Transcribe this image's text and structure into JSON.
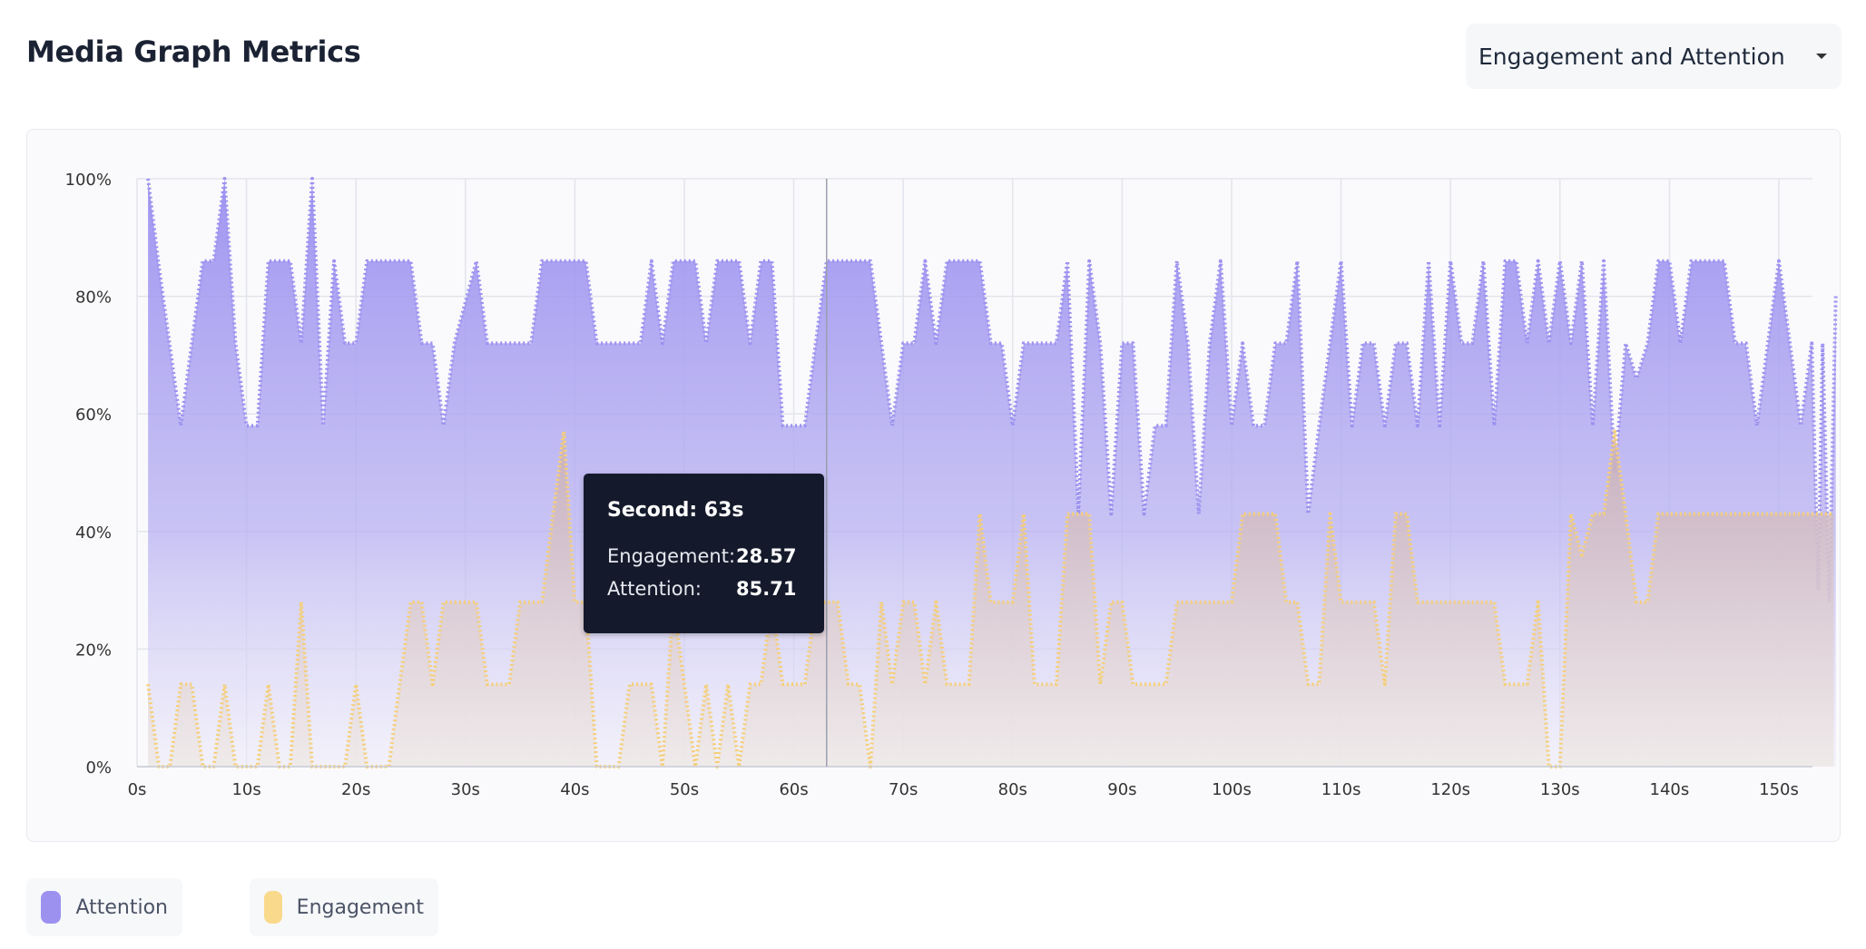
{
  "header": {
    "title": "Media Graph Metrics",
    "metric_select": {
      "value": "Engagement and Attention"
    }
  },
  "tooltip": {
    "title": "Second: 63s",
    "rows": [
      {
        "label": "Engagement:",
        "value": "28.57"
      },
      {
        "label": "Attention:",
        "value": "85.71"
      }
    ]
  },
  "legend": [
    {
      "label": "Attention",
      "color": "#9d91f0"
    },
    {
      "label": "Engagement",
      "color": "#f9d98b"
    }
  ],
  "chart_data": {
    "type": "area",
    "x_unit": "s",
    "xlim": [
      0,
      153
    ],
    "ylim": [
      0,
      100
    ],
    "x_ticks": [
      "0s",
      "10s",
      "20s",
      "30s",
      "40s",
      "50s",
      "60s",
      "70s",
      "80s",
      "90s",
      "100s",
      "110s",
      "120s",
      "130s",
      "140s",
      "150s"
    ],
    "y_ticks": [
      "0%",
      "20%",
      "40%",
      "60%",
      "80%",
      "100%"
    ],
    "grid": true,
    "legend_position": "bottom-left",
    "hover_x": 63,
    "series": [
      {
        "name": "Attention",
        "color": "#9d91f0",
        "points": [
          [
            1,
            100
          ],
          [
            2,
            85
          ],
          [
            4,
            58
          ],
          [
            6,
            86
          ],
          [
            7,
            86
          ],
          [
            8,
            100
          ],
          [
            9,
            72
          ],
          [
            10,
            58
          ],
          [
            11,
            58
          ],
          [
            12,
            86
          ],
          [
            14,
            86
          ],
          [
            15,
            72
          ],
          [
            16,
            100
          ],
          [
            17,
            58
          ],
          [
            18,
            86
          ],
          [
            19,
            72
          ],
          [
            20,
            72
          ],
          [
            21,
            86
          ],
          [
            25,
            86
          ],
          [
            26,
            72
          ],
          [
            27,
            72
          ],
          [
            28,
            58
          ],
          [
            29,
            72
          ],
          [
            31,
            86
          ],
          [
            32,
            72
          ],
          [
            36,
            72
          ],
          [
            37,
            86
          ],
          [
            41,
            86
          ],
          [
            42,
            72
          ],
          [
            46,
            72
          ],
          [
            47,
            86
          ],
          [
            48,
            72
          ],
          [
            49,
            86
          ],
          [
            51,
            86
          ],
          [
            52,
            72
          ],
          [
            53,
            86
          ],
          [
            55,
            86
          ],
          [
            56,
            72
          ],
          [
            57,
            86
          ],
          [
            58,
            86
          ],
          [
            59,
            58
          ],
          [
            61,
            58
          ],
          [
            62,
            72
          ],
          [
            63,
            86
          ],
          [
            67,
            86
          ],
          [
            68,
            72
          ],
          [
            69,
            58
          ],
          [
            70,
            72
          ],
          [
            71,
            72
          ],
          [
            72,
            86
          ],
          [
            73,
            72
          ],
          [
            74,
            86
          ],
          [
            77,
            86
          ],
          [
            78,
            72
          ],
          [
            79,
            72
          ],
          [
            80,
            58
          ],
          [
            81,
            72
          ],
          [
            84,
            72
          ],
          [
            85,
            86
          ],
          [
            86,
            43
          ],
          [
            87,
            86
          ],
          [
            88,
            72
          ],
          [
            89,
            43
          ],
          [
            90,
            72
          ],
          [
            91,
            72
          ],
          [
            92,
            43
          ],
          [
            93,
            58
          ],
          [
            94,
            58
          ],
          [
            95,
            86
          ],
          [
            96,
            72
          ],
          [
            97,
            43
          ],
          [
            98,
            72
          ],
          [
            99,
            86
          ],
          [
            100,
            58
          ],
          [
            101,
            72
          ],
          [
            102,
            58
          ],
          [
            103,
            58
          ],
          [
            104,
            72
          ],
          [
            105,
            72
          ],
          [
            106,
            86
          ],
          [
            107,
            43
          ],
          [
            108,
            58
          ],
          [
            109,
            72
          ],
          [
            110,
            86
          ],
          [
            111,
            58
          ],
          [
            112,
            72
          ],
          [
            113,
            72
          ],
          [
            114,
            58
          ],
          [
            115,
            72
          ],
          [
            116,
            72
          ],
          [
            117,
            58
          ],
          [
            118,
            86
          ],
          [
            119,
            58
          ],
          [
            120,
            86
          ],
          [
            121,
            72
          ],
          [
            122,
            72
          ],
          [
            123,
            86
          ],
          [
            124,
            58
          ],
          [
            125,
            86
          ],
          [
            126,
            86
          ],
          [
            127,
            72
          ],
          [
            128,
            86
          ],
          [
            129,
            72
          ],
          [
            130,
            86
          ],
          [
            131,
            72
          ],
          [
            132,
            86
          ],
          [
            133,
            58
          ],
          [
            134,
            86
          ],
          [
            135,
            50
          ],
          [
            136,
            72
          ],
          [
            137,
            66
          ],
          [
            138,
            72
          ],
          [
            139,
            86
          ],
          [
            140,
            86
          ],
          [
            141,
            72
          ],
          [
            142,
            86
          ],
          [
            145,
            86
          ],
          [
            146,
            72
          ],
          [
            147,
            72
          ],
          [
            148,
            58
          ],
          [
            149,
            72
          ],
          [
            150,
            86
          ],
          [
            151,
            72
          ],
          [
            152,
            58
          ],
          [
            153,
            72
          ],
          [
            153.6,
            30
          ],
          [
            154,
            72
          ],
          [
            154.6,
            28
          ],
          [
            155.2,
            80
          ]
        ]
      },
      {
        "name": "Engagement",
        "color": "#f5cf78",
        "points": [
          [
            1,
            14
          ],
          [
            2,
            0
          ],
          [
            3,
            0
          ],
          [
            4,
            14
          ],
          [
            5,
            14
          ],
          [
            6,
            0
          ],
          [
            7,
            0
          ],
          [
            8,
            14
          ],
          [
            9,
            0
          ],
          [
            10,
            0
          ],
          [
            11,
            0
          ],
          [
            12,
            14
          ],
          [
            13,
            0
          ],
          [
            14,
            0
          ],
          [
            15,
            28
          ],
          [
            16,
            0
          ],
          [
            17,
            0
          ],
          [
            18,
            0
          ],
          [
            19,
            0
          ],
          [
            20,
            14
          ],
          [
            21,
            0
          ],
          [
            22,
            0
          ],
          [
            23,
            0
          ],
          [
            24,
            14
          ],
          [
            25,
            28
          ],
          [
            26,
            28
          ],
          [
            27,
            14
          ],
          [
            28,
            28
          ],
          [
            29,
            28
          ],
          [
            31,
            28
          ],
          [
            32,
            14
          ],
          [
            33,
            14
          ],
          [
            34,
            14
          ],
          [
            35,
            28
          ],
          [
            36,
            28
          ],
          [
            37,
            28
          ],
          [
            38,
            43
          ],
          [
            39,
            57
          ],
          [
            40,
            28
          ],
          [
            41,
            28
          ],
          [
            42,
            0
          ],
          [
            44,
            0
          ],
          [
            45,
            14
          ],
          [
            46,
            14
          ],
          [
            47,
            14
          ],
          [
            48,
            0
          ],
          [
            49,
            28
          ],
          [
            50,
            14
          ],
          [
            51,
            0
          ],
          [
            52,
            14
          ],
          [
            53,
            0
          ],
          [
            54,
            14
          ],
          [
            55,
            0
          ],
          [
            56,
            14
          ],
          [
            57,
            14
          ],
          [
            58,
            28
          ],
          [
            59,
            14
          ],
          [
            61,
            14
          ],
          [
            62,
            28
          ],
          [
            64,
            28
          ],
          [
            65,
            14
          ],
          [
            66,
            14
          ],
          [
            67,
            0
          ],
          [
            68,
            28
          ],
          [
            69,
            14
          ],
          [
            70,
            28
          ],
          [
            71,
            28
          ],
          [
            72,
            14
          ],
          [
            73,
            28
          ],
          [
            74,
            14
          ],
          [
            76,
            14
          ],
          [
            77,
            43
          ],
          [
            78,
            28
          ],
          [
            80,
            28
          ],
          [
            81,
            43
          ],
          [
            82,
            14
          ],
          [
            84,
            14
          ],
          [
            85,
            43
          ],
          [
            86,
            43
          ],
          [
            87,
            43
          ],
          [
            88,
            14
          ],
          [
            89,
            28
          ],
          [
            90,
            28
          ],
          [
            91,
            14
          ],
          [
            92,
            14
          ],
          [
            94,
            14
          ],
          [
            95,
            28
          ],
          [
            96,
            28
          ],
          [
            98,
            28
          ],
          [
            100,
            28
          ],
          [
            101,
            43
          ],
          [
            103,
            43
          ],
          [
            104,
            43
          ],
          [
            105,
            28
          ],
          [
            106,
            28
          ],
          [
            107,
            14
          ],
          [
            108,
            14
          ],
          [
            109,
            43
          ],
          [
            110,
            28
          ],
          [
            112,
            28
          ],
          [
            113,
            28
          ],
          [
            114,
            14
          ],
          [
            115,
            43
          ],
          [
            116,
            43
          ],
          [
            117,
            28
          ],
          [
            118,
            28
          ],
          [
            124,
            28
          ],
          [
            125,
            14
          ],
          [
            127,
            14
          ],
          [
            128,
            28
          ],
          [
            129,
            0
          ],
          [
            130,
            0
          ],
          [
            131,
            43
          ],
          [
            132,
            36
          ],
          [
            133,
            43
          ],
          [
            134,
            43
          ],
          [
            135,
            57
          ],
          [
            136,
            43
          ],
          [
            137,
            28
          ],
          [
            138,
            28
          ],
          [
            139,
            43
          ],
          [
            140,
            43
          ],
          [
            144,
            43
          ],
          [
            153,
            43
          ],
          [
            154,
            43
          ],
          [
            155,
            43
          ]
        ]
      }
    ]
  }
}
